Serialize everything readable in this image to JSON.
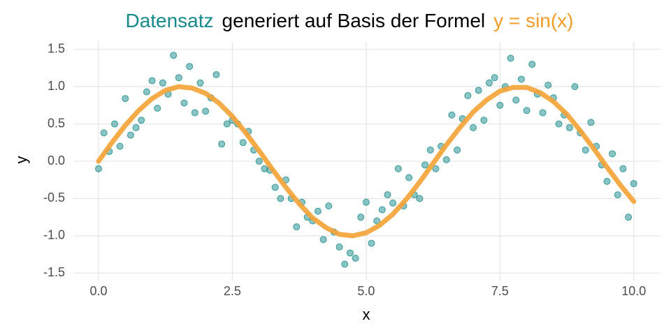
{
  "chart_data": {
    "type": "scatter",
    "title_parts": [
      {
        "text": "Datensatz",
        "color": "#16898a"
      },
      {
        "text": "generiert auf Basis der Formel",
        "color": "#000000"
      },
      {
        "text": "y = sin(x)",
        "color": "#f39c26"
      }
    ],
    "x_label": "x",
    "y_label": "y",
    "xlim": [
      -0.47,
      10.5
    ],
    "ylim": [
      -1.6,
      1.6
    ],
    "xticks": [
      {
        "value": 0,
        "label": "0.0"
      },
      2.5,
      {
        "value": 5,
        "label": "5.0"
      },
      7.5,
      {
        "value": 10,
        "label": "10.0"
      }
    ],
    "yticks": [
      1.5,
      {
        "value": 1,
        "label": "1.0"
      },
      0.5,
      {
        "value": 0,
        "label": "0.0"
      },
      -0.5,
      {
        "value": -1,
        "label": "-1.0"
      },
      -1.5
    ],
    "grid": true,
    "series": [
      {
        "type": "scatter",
        "color": "#16898a",
        "x": [
          0,
          0.1,
          0.2,
          0.3,
          0.4,
          0.5,
          0.6,
          0.7,
          0.8,
          0.9,
          1,
          1.1,
          1.2,
          1.3,
          1.4,
          1.5,
          1.6,
          1.7,
          1.8,
          1.9,
          2,
          2.1,
          2.2,
          2.3,
          2.4,
          2.5,
          2.6,
          2.7,
          2.8,
          2.9,
          3,
          3.1,
          3.2,
          3.3,
          3.4,
          3.5,
          3.6,
          3.7,
          3.8,
          3.9,
          4,
          4.1,
          4.2,
          4.3,
          4.4,
          4.5,
          4.6,
          4.7,
          4.8,
          4.9,
          5,
          5.1,
          5.2,
          5.3,
          5.4,
          5.5,
          5.6,
          5.7,
          5.8,
          5.9,
          6,
          6.1,
          6.2,
          6.3,
          6.4,
          6.5,
          6.6,
          6.7,
          6.8,
          6.9,
          7,
          7.1,
          7.2,
          7.3,
          7.4,
          7.5,
          7.6,
          7.7,
          7.8,
          7.9,
          8,
          8.1,
          8.2,
          8.3,
          8.4,
          8.5,
          8.6,
          8.7,
          8.8,
          8.9,
          9,
          9.1,
          9.2,
          9.3,
          9.4,
          9.5,
          9.6,
          9.7,
          9.8,
          9.9,
          10
        ],
        "values": [
          -0.1,
          0.38,
          0.13,
          0.5,
          0.2,
          0.84,
          0.35,
          0.45,
          0.55,
          0.93,
          1.08,
          0.71,
          1.05,
          0.9,
          1.42,
          1.12,
          0.78,
          1.27,
          0.65,
          1.05,
          0.67,
          0.85,
          1.16,
          0.23,
          0.5,
          0.55,
          0.5,
          0.25,
          0.4,
          0.15,
          0,
          -0.1,
          -0.12,
          -0.35,
          -0.5,
          -0.25,
          -0.5,
          -0.88,
          -0.55,
          -0.75,
          -0.8,
          -0.67,
          -1.05,
          -0.6,
          -0.95,
          -1.15,
          -1.38,
          -1.23,
          -1.3,
          -0.75,
          -0.55,
          -1.1,
          -0.8,
          -0.65,
          -0.45,
          -0.56,
          -0.1,
          -0.6,
          -0.22,
          -0.45,
          -0.5,
          -0.05,
          0.15,
          -0.1,
          0.2,
          0.02,
          0.62,
          0.15,
          0.57,
          0.88,
          0.45,
          0.95,
          0.55,
          1.05,
          1.12,
          0.75,
          1,
          1.38,
          0.82,
          1.1,
          0.68,
          1.3,
          0.9,
          0.65,
          1.02,
          0.85,
          0.5,
          0.62,
          0.45,
          1,
          0.38,
          0.15,
          0.52,
          0.2,
          -0.05,
          -0.27,
          0.1,
          -0.45,
          -0.1,
          -0.75,
          -0.3
        ]
      },
      {
        "type": "line",
        "color": "#f5a235",
        "x": [
          0,
          0.25,
          0.5,
          0.75,
          1,
          1.25,
          1.5,
          1.75,
          2,
          2.25,
          2.5,
          2.75,
          3,
          3.25,
          3.5,
          3.75,
          4,
          4.25,
          4.5,
          4.75,
          5,
          5.25,
          5.5,
          5.75,
          6,
          6.25,
          6.5,
          6.75,
          7,
          7.25,
          7.5,
          7.75,
          8,
          8.25,
          8.5,
          8.75,
          9,
          9.25,
          9.5,
          9.75,
          10
        ],
        "values": [
          0,
          0.25,
          0.48,
          0.68,
          0.84,
          0.95,
          1,
          0.98,
          0.91,
          0.78,
          0.6,
          0.38,
          0.14,
          -0.11,
          -0.35,
          -0.57,
          -0.76,
          -0.89,
          -0.98,
          -1,
          -0.96,
          -0.86,
          -0.71,
          -0.51,
          -0.28,
          -0.03,
          0.22,
          0.45,
          0.66,
          0.82,
          0.94,
          0.99,
          0.99,
          0.92,
          0.8,
          0.63,
          0.41,
          0.17,
          -0.08,
          -0.32,
          -0.54
        ]
      }
    ]
  }
}
